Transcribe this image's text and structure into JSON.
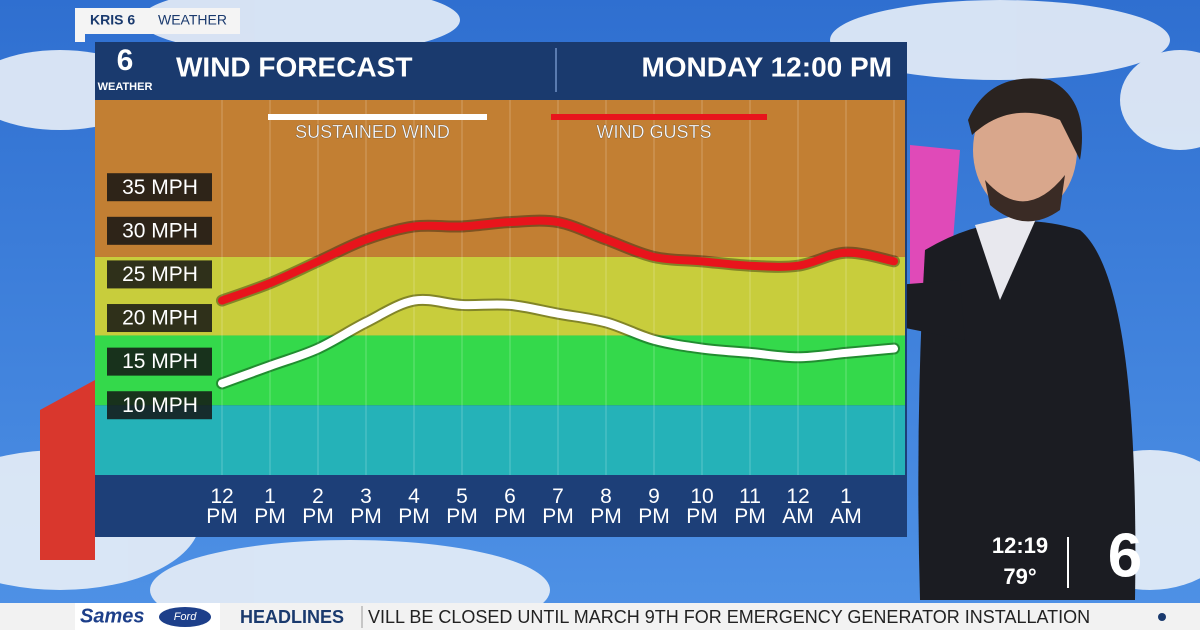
{
  "brand": {
    "station": "KRIS 6",
    "section": "WEATHER"
  },
  "logo": {
    "number": "6",
    "label": "WEATHER"
  },
  "chart_data": {
    "type": "line",
    "title": "WIND FORECAST",
    "subtitle": "MONDAY 12:00 PM",
    "categories": [
      "12 PM",
      "1 PM",
      "2 PM",
      "3 PM",
      "4 PM",
      "5 PM",
      "6 PM",
      "7 PM",
      "8 PM",
      "9 PM",
      "10 PM",
      "11 PM",
      "12 AM",
      "1 AM",
      null
    ],
    "series": [
      {
        "name": "SUSTAINED WIND",
        "color": "#ffffff",
        "values": [
          12.5,
          14.5,
          16.5,
          19.5,
          22,
          21.5,
          21.5,
          20.5,
          19.5,
          17.5,
          16.5,
          16,
          15.5,
          16,
          16.5
        ]
      },
      {
        "name": "WIND GUSTS",
        "color": "#e8141c",
        "values": [
          22,
          24,
          26.5,
          29,
          30.5,
          30.5,
          31,
          31,
          29,
          27,
          26.5,
          26,
          26,
          27.5,
          26.5
        ]
      }
    ],
    "bands": [
      {
        "from": 2,
        "to": 10,
        "color": "#25b2b8"
      },
      {
        "from": 10,
        "to": 18,
        "color": "#34d94b"
      },
      {
        "from": 18,
        "to": 27,
        "color": "#c8cd3c"
      },
      {
        "from": 27,
        "to": 45,
        "color": "#c27f33"
      }
    ],
    "ylim": [
      2,
      45
    ],
    "yticks": [
      {
        "value": 10,
        "label": "10 MPH"
      },
      {
        "value": 15,
        "label": "15 MPH"
      },
      {
        "value": 20,
        "label": "20 MPH"
      },
      {
        "value": 25,
        "label": "25 MPH"
      },
      {
        "value": 30,
        "label": "30 MPH"
      },
      {
        "value": 35,
        "label": "35 MPH"
      }
    ],
    "grid": false
  },
  "clock": {
    "time": "12:19",
    "temperature": "79°"
  },
  "ticker": {
    "sponsor": "Sames",
    "sponsor_brand": "Ford",
    "label": "HEADLINES",
    "text": "VILL BE CLOSED UNTIL MARCH 9TH FOR EMERGENCY GENERATOR INSTALLATION"
  }
}
